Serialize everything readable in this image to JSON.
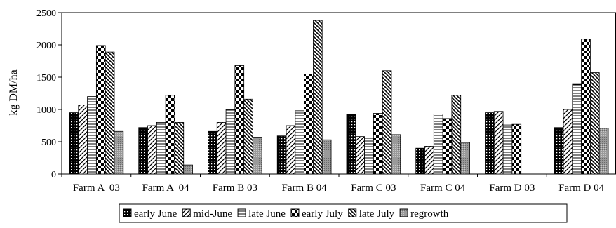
{
  "chart_data": {
    "type": "bar",
    "title": "",
    "xlabel": "",
    "ylabel": "kg DM/ha",
    "ylim": [
      0,
      2500
    ],
    "yticks": [
      0,
      500,
      1000,
      1500,
      2000,
      2500
    ],
    "grid": false,
    "legend_position": "bottom",
    "categories": [
      "Farm A  03",
      "Farm A  04",
      "Farm B 03",
      "Farm B 04",
      "Farm C 03",
      "Farm C 04",
      "Farm D 03",
      "Farm D 04"
    ],
    "series": [
      {
        "name": "early June",
        "pattern": "dots",
        "values": [
          950,
          720,
          660,
          590,
          930,
          400,
          950,
          720
        ]
      },
      {
        "name": "mid-June",
        "pattern": "diagonal",
        "values": [
          1070,
          750,
          800,
          750,
          580,
          430,
          970,
          1000
        ]
      },
      {
        "name": "late June",
        "pattern": "horizontal",
        "values": [
          1200,
          800,
          1000,
          980,
          560,
          930,
          760,
          1390
        ]
      },
      {
        "name": "early July",
        "pattern": "checker",
        "values": [
          1990,
          1220,
          1680,
          1550,
          940,
          860,
          770,
          2090
        ]
      },
      {
        "name": "late July",
        "pattern": "backdiag",
        "values": [
          1890,
          800,
          1160,
          2380,
          1600,
          1220,
          null,
          1570
        ]
      },
      {
        "name": "regrowth",
        "pattern": "gray",
        "values": [
          660,
          140,
          570,
          530,
          610,
          490,
          null,
          710
        ]
      }
    ]
  }
}
